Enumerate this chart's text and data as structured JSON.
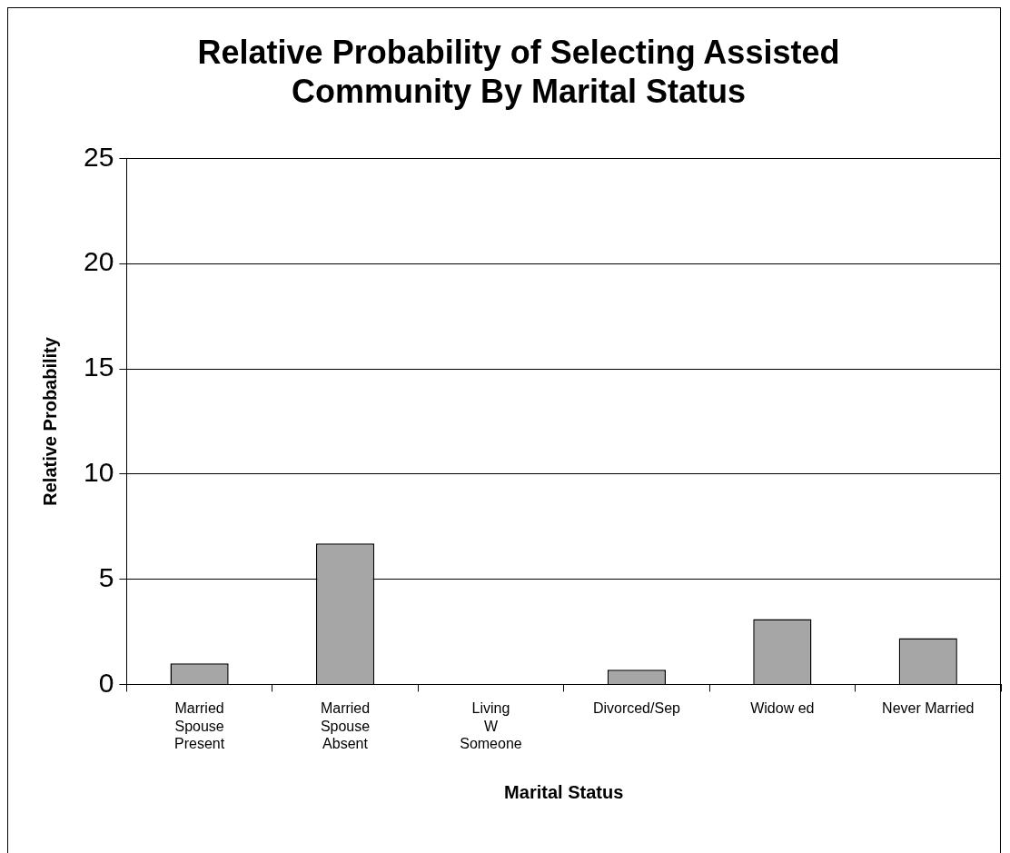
{
  "chart_data": {
    "type": "bar",
    "title": "Relative Probability of Selecting Assisted Community By Marital Status",
    "xlabel": "Marital Status",
    "ylabel": "Relative Probability",
    "categories": [
      "Married Spouse Present",
      "Married Spouse Absent",
      "Living W Someone",
      "Divorced/Sep",
      "Widow ed",
      "Never Married"
    ],
    "values": [
      1.0,
      6.7,
      0,
      0.7,
      3.1,
      2.2
    ],
    "color": "#a6a6a6",
    "ylim": [
      0,
      25
    ],
    "yticks": [
      0,
      5,
      10,
      15,
      20,
      25
    ],
    "grid": "y",
    "legend": false
  }
}
